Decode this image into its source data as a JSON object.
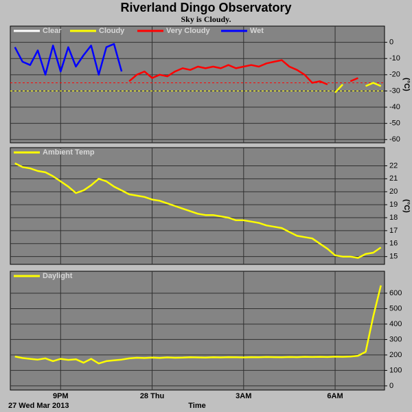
{
  "title": "Riverland Dingo Observatory",
  "subtitle": "Sky is Cloudy.",
  "chart_data": [
    {
      "type": "line",
      "ylabel": "(°C)",
      "ylim": [
        -62,
        10
      ],
      "yticks": [
        0,
        -10,
        -20,
        -30,
        -40,
        -50,
        -60
      ],
      "reference_lines": [
        {
          "value": -25,
          "color": "#ff0000"
        },
        {
          "value": -30,
          "color": "#ffff00"
        }
      ],
      "x": [
        19.5,
        19.75,
        20,
        20.25,
        20.5,
        20.75,
        21,
        21.25,
        21.5,
        21.75,
        22,
        22.25,
        22.5,
        22.75,
        23,
        23.25,
        23.5,
        23.75,
        24,
        24.25,
        24.5,
        24.75,
        25,
        25.25,
        25.5,
        25.75,
        26,
        26.25,
        26.5,
        26.75,
        27,
        27.25,
        27.5,
        27.75,
        28,
        28.25,
        28.5,
        28.75,
        29,
        29.25,
        29.5,
        29.75,
        30,
        30.25,
        30.5,
        30.75,
        31,
        31.25,
        31.5
      ],
      "series": [
        {
          "name": "Clear",
          "color": "#ffffff",
          "values": [
            null,
            null,
            null,
            null,
            null,
            null,
            null,
            null,
            null,
            null,
            null,
            null,
            null,
            null,
            null,
            null,
            null,
            null,
            null,
            null,
            null,
            null,
            null,
            null,
            null,
            null,
            null,
            null,
            null,
            null,
            null,
            null,
            null,
            null,
            null,
            null,
            null,
            null,
            null,
            null,
            null,
            null,
            null,
            null,
            null,
            null,
            null,
            null,
            null
          ]
        },
        {
          "name": "Cloudy",
          "color": "#ffff00",
          "values": [
            null,
            null,
            null,
            null,
            null,
            null,
            null,
            null,
            null,
            null,
            null,
            null,
            null,
            null,
            null,
            null,
            null,
            null,
            null,
            null,
            null,
            null,
            null,
            null,
            null,
            null,
            null,
            null,
            null,
            null,
            null,
            null,
            null,
            null,
            null,
            null,
            null,
            null,
            null,
            null,
            null,
            null,
            -31,
            -26,
            null,
            null,
            -27,
            -25,
            -27
          ]
        },
        {
          "name": "Very Cloudy",
          "color": "#ff0000",
          "values": [
            null,
            null,
            null,
            null,
            null,
            null,
            null,
            null,
            null,
            null,
            null,
            null,
            null,
            null,
            null,
            -24,
            -20,
            -18,
            -22,
            -20,
            -21,
            -18,
            -16,
            -17,
            -15,
            -16,
            -15,
            -16,
            -14,
            -16,
            -15,
            -14,
            -15,
            -13,
            -12,
            -11,
            -15,
            -17,
            -20,
            -25,
            -24,
            -26,
            null,
            null,
            -24,
            -22,
            null,
            null,
            null
          ]
        },
        {
          "name": "Wet",
          "color": "#0000ff",
          "values": [
            -3,
            -12,
            -14,
            -5,
            -20,
            -2,
            -18,
            -3,
            -15,
            -8,
            -2,
            -20,
            -3,
            -1,
            -18,
            null,
            null,
            null,
            null,
            null,
            null,
            null,
            null,
            null,
            null,
            null,
            null,
            null,
            null,
            null,
            null,
            null,
            null,
            null,
            null,
            null,
            null,
            null,
            null,
            null,
            null,
            null,
            null,
            null,
            null,
            null,
            null,
            null,
            null
          ]
        }
      ]
    },
    {
      "type": "line",
      "ylabel": "(°C)",
      "ylim": [
        14.4,
        23.4
      ],
      "yticks": [
        22,
        21,
        20,
        19,
        18,
        17,
        16,
        15
      ],
      "x": [
        19.5,
        19.75,
        20,
        20.25,
        20.5,
        20.75,
        21,
        21.25,
        21.5,
        21.75,
        22,
        22.25,
        22.5,
        22.75,
        23,
        23.25,
        23.5,
        23.75,
        24,
        24.25,
        24.5,
        24.75,
        25,
        25.25,
        25.5,
        25.75,
        26,
        26.25,
        26.5,
        26.75,
        27,
        27.25,
        27.5,
        27.75,
        28,
        28.25,
        28.5,
        28.75,
        29,
        29.25,
        29.5,
        29.75,
        30,
        30.25,
        30.5,
        30.75,
        31,
        31.25,
        31.5
      ],
      "series": [
        {
          "name": "Ambient Temp",
          "color": "#ffff00",
          "values": [
            22.2,
            21.9,
            21.8,
            21.6,
            21.5,
            21.2,
            20.8,
            20.4,
            19.9,
            20.1,
            20.5,
            21.0,
            20.8,
            20.4,
            20.1,
            19.8,
            19.7,
            19.6,
            19.4,
            19.3,
            19.1,
            18.9,
            18.7,
            18.5,
            18.3,
            18.2,
            18.2,
            18.1,
            18.0,
            17.8,
            17.8,
            17.7,
            17.6,
            17.4,
            17.3,
            17.2,
            16.9,
            16.6,
            16.5,
            16.4,
            16.0,
            15.6,
            15.1,
            15.0,
            15.0,
            14.9,
            15.2,
            15.3,
            15.7
          ]
        }
      ]
    },
    {
      "type": "line",
      "xlabel": "Time",
      "date_label": "27 Wed Mar 2013",
      "xlim": [
        19.35,
        31.62
      ],
      "xticks": [
        {
          "value": 21,
          "label": "9PM"
        },
        {
          "value": 24,
          "label": "28 Thu"
        },
        {
          "value": 27,
          "label": "3AM"
        },
        {
          "value": 30,
          "label": "6AM"
        }
      ],
      "ylim": [
        -27,
        742
      ],
      "yticks": [
        600,
        500,
        400,
        300,
        200,
        100,
        0
      ],
      "x": [
        19.5,
        19.75,
        20,
        20.25,
        20.5,
        20.75,
        21,
        21.25,
        21.5,
        21.75,
        22,
        22.25,
        22.5,
        22.75,
        23,
        23.25,
        23.5,
        23.75,
        24,
        24.25,
        24.5,
        24.75,
        25,
        25.25,
        25.5,
        25.75,
        26,
        26.25,
        26.5,
        26.75,
        27,
        27.25,
        27.5,
        27.75,
        28,
        28.25,
        28.5,
        28.75,
        29,
        29.25,
        29.5,
        29.75,
        30,
        30.25,
        30.5,
        30.75,
        31,
        31.25,
        31.5
      ],
      "series": [
        {
          "name": "Daylight",
          "color": "#ffff00",
          "values": [
            190,
            180,
            175,
            170,
            178,
            160,
            175,
            168,
            172,
            150,
            175,
            145,
            160,
            165,
            170,
            178,
            182,
            180,
            183,
            181,
            184,
            182,
            183,
            185,
            184,
            183,
            185,
            184,
            186,
            185,
            184,
            186,
            185,
            187,
            186,
            185,
            187,
            186,
            188,
            187,
            188,
            187,
            189,
            188,
            190,
            195,
            220,
            450,
            650
          ]
        }
      ]
    }
  ]
}
